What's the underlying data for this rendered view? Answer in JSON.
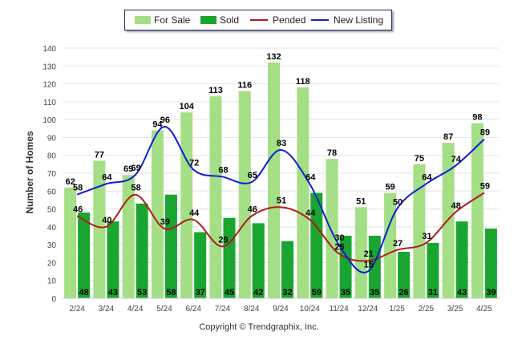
{
  "chart_data": {
    "type": "bar",
    "title": "",
    "xlabel": "",
    "ylabel": "Number of Homes",
    "ylim": [
      0,
      140
    ],
    "yticks": [
      0,
      10,
      20,
      30,
      40,
      50,
      60,
      70,
      80,
      90,
      100,
      110,
      120,
      130,
      140
    ],
    "grid": true,
    "legend_position": "top-center",
    "categories": [
      "2/24",
      "3/24",
      "4/24",
      "5/24",
      "6/24",
      "7/24",
      "8/24",
      "9/24",
      "10/24",
      "11/24",
      "12/24",
      "1/25",
      "2/25",
      "3/25",
      "4/25"
    ],
    "series": [
      {
        "name": "For Sale",
        "kind": "bar",
        "color": "#a4df86",
        "values": [
          62,
          77,
          69,
          94,
          104,
          113,
          116,
          132,
          118,
          78,
          51,
          59,
          75,
          87,
          98
        ]
      },
      {
        "name": "Sold",
        "kind": "bar",
        "color": "#1aa530",
        "values": [
          48,
          43,
          53,
          58,
          37,
          45,
          42,
          32,
          59,
          35,
          35,
          26,
          31,
          43,
          39
        ]
      },
      {
        "name": "Pended",
        "kind": "line",
        "color": "#b01c1c",
        "values": [
          46,
          40,
          58,
          39,
          44,
          29,
          46,
          51,
          44,
          25,
          21,
          27,
          31,
          48,
          59
        ]
      },
      {
        "name": "New Listing",
        "kind": "line",
        "color": "#0d1fd4",
        "values": [
          58,
          64,
          69,
          96,
          72,
          68,
          65,
          83,
          64,
          30,
          15,
          50,
          64,
          74,
          89
        ]
      }
    ]
  },
  "copyright": "Copyright © Trendgraphix, Inc."
}
